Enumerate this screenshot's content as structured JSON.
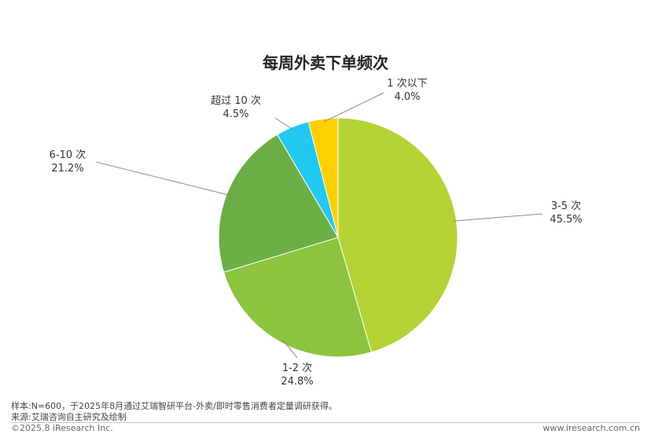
{
  "chart_data": {
    "type": "pie",
    "title": "每周外卖下单频次",
    "slices": [
      {
        "label": "3-5 次",
        "value": 45.5,
        "display": "45.5%",
        "color": "#b5d334"
      },
      {
        "label": "1-2 次",
        "value": 24.8,
        "display": "24.8%",
        "color": "#8cc33f"
      },
      {
        "label": "6-10 次",
        "value": 21.2,
        "display": "21.2%",
        "color": "#6bae45"
      },
      {
        "label": "超过 10 次",
        "value": 4.5,
        "display": "4.5%",
        "color": "#22c8ef"
      },
      {
        "label": "1 次以下",
        "value": 4.0,
        "display": "4.0%",
        "color": "#ffd000"
      }
    ],
    "start": "12 o'clock",
    "direction": "clockwise",
    "legend": "none",
    "labels": "outside with leader lines"
  },
  "footer": {
    "note": "样本:N=600，于2025年8月通过艾瑞智研平台-外卖/即时零售消费者定量调研获得。",
    "source": "来源:艾瑞咨询自主研究及绘制",
    "copyright": "©2025.8 iResearch Inc.",
    "website": "www.iresearch.com.cn"
  }
}
